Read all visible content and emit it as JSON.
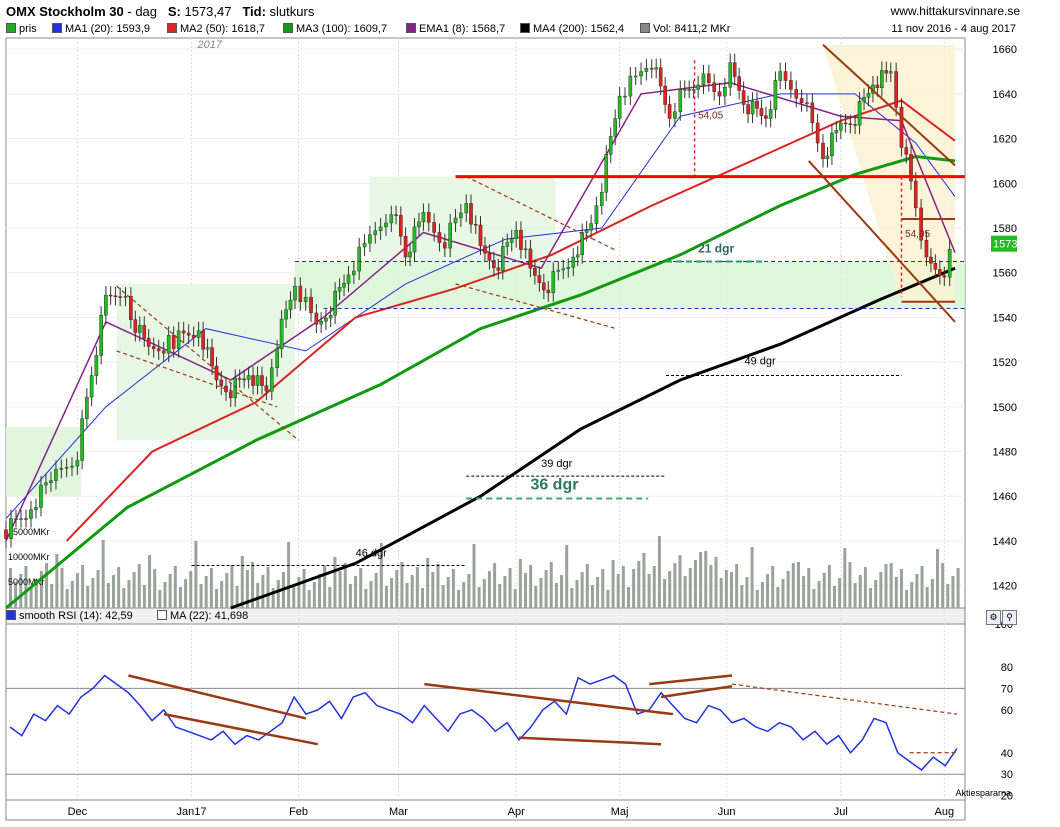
{
  "header": {
    "title": "OMX Stockholm 30",
    "interval": "dag",
    "close_label": "S:",
    "close_value": "1573,47",
    "time_label": "Tid:",
    "time_value": "slutkurs",
    "site": "www.hittakursvinnare.se",
    "date_range": "11 nov 2016 - 4 aug 2017"
  },
  "legend": [
    {
      "label": "pris",
      "color": "#22aa22"
    },
    {
      "label": "MA1 (20): 1593,9",
      "color": "#2233dd"
    },
    {
      "label": "MA2 (50): 1618,7",
      "color": "#dd2222"
    },
    {
      "label": "MA3 (100): 1609,7",
      "color": "#119911"
    },
    {
      "label": "EMA1 (8): 1568,7",
      "color": "#882288"
    },
    {
      "label": "MA4 (200): 1562,4",
      "color": "#000000"
    },
    {
      "label": "Vol: 8411,2 MKr",
      "color": "#888888"
    }
  ],
  "rsi_legend": [
    {
      "label": "smooth RSI (14): 42,59",
      "color": "#2233dd"
    },
    {
      "label": "MA (22): 41,698",
      "color": "#ffffff"
    }
  ],
  "colors": {
    "up": "#22bb22",
    "down": "#dd2222",
    "trend": "#9b3a12",
    "support": "#ff0000",
    "volume": "#9aa39a"
  },
  "chart_data": [
    {
      "type": "candlestick",
      "title": "OMX Stockholm 30",
      "ylim": [
        1410,
        1665
      ],
      "y_ticks": [
        1420,
        1440,
        1460,
        1480,
        1500,
        1520,
        1540,
        1560,
        1580,
        1600,
        1620,
        1640,
        1660
      ],
      "x_labels": [
        "Dec",
        "Jan17",
        "Feb",
        "Mar",
        "Apr",
        "Maj",
        "Jun",
        "Jul",
        "Aug"
      ],
      "year_marker": "2017",
      "last_price": "1573",
      "close_path": [
        [
          "2016-11-11",
          1445
        ],
        [
          "2016-11-18",
          1455
        ],
        [
          "2016-11-25",
          1470
        ],
        [
          "2016-12-01",
          1480
        ],
        [
          "2016-12-05",
          1515
        ],
        [
          "2016-12-09",
          1548
        ],
        [
          "2016-12-13",
          1553
        ],
        [
          "2016-12-16",
          1540
        ],
        [
          "2016-12-21",
          1525
        ],
        [
          "2016-12-28",
          1530
        ],
        [
          "2017-01-04",
          1535
        ],
        [
          "2017-01-09",
          1510
        ],
        [
          "2017-01-13",
          1508
        ],
        [
          "2017-01-18",
          1515
        ],
        [
          "2017-01-23",
          1505
        ],
        [
          "2017-01-26",
          1530
        ],
        [
          "2017-01-31",
          1555
        ],
        [
          "2017-02-06",
          1535
        ],
        [
          "2017-02-10",
          1545
        ],
        [
          "2017-02-15",
          1560
        ],
        [
          "2017-02-21",
          1575
        ],
        [
          "2017-02-27",
          1590
        ],
        [
          "2017-03-03",
          1568
        ],
        [
          "2017-03-08",
          1585
        ],
        [
          "2017-03-14",
          1575
        ],
        [
          "2017-03-20",
          1592
        ],
        [
          "2017-03-24",
          1570
        ],
        [
          "2017-03-29",
          1565
        ],
        [
          "2017-04-03",
          1580
        ],
        [
          "2017-04-07",
          1560
        ],
        [
          "2017-04-12",
          1555
        ],
        [
          "2017-04-19",
          1568
        ],
        [
          "2017-04-24",
          1580
        ],
        [
          "2017-04-27",
          1600
        ],
        [
          "2017-05-02",
          1640
        ],
        [
          "2017-05-08",
          1648
        ],
        [
          "2017-05-11",
          1655
        ],
        [
          "2017-05-16",
          1630
        ],
        [
          "2017-05-19",
          1640
        ],
        [
          "2017-05-24",
          1648
        ],
        [
          "2017-05-30",
          1640
        ],
        [
          "2017-06-02",
          1652
        ],
        [
          "2017-06-07",
          1635
        ],
        [
          "2017-06-12",
          1630
        ],
        [
          "2017-06-16",
          1648
        ],
        [
          "2017-06-22",
          1640
        ],
        [
          "2017-06-28",
          1612
        ],
        [
          "2017-07-03",
          1625
        ],
        [
          "2017-07-07",
          1630
        ],
        [
          "2017-07-12",
          1645
        ],
        [
          "2017-07-17",
          1648
        ],
        [
          "2017-07-20",
          1620
        ],
        [
          "2017-07-24",
          1590
        ],
        [
          "2017-07-27",
          1565
        ],
        [
          "2017-08-01",
          1562
        ],
        [
          "2017-08-04",
          1573
        ]
      ],
      "moving_averages": [
        {
          "name": "MA1 (20)",
          "value": 1593.9,
          "points": [
            [
              "2016-11-11",
              1450
            ],
            [
              "2016-12-09",
              1500
            ],
            [
              "2017-01-06",
              1535
            ],
            [
              "2017-02-03",
              1525
            ],
            [
              "2017-03-03",
              1555
            ],
            [
              "2017-03-31",
              1575
            ],
            [
              "2017-04-27",
              1580
            ],
            [
              "2017-05-19",
              1630
            ],
            [
              "2017-06-16",
              1640
            ],
            [
              "2017-07-07",
              1640
            ],
            [
              "2017-07-24",
              1618
            ],
            [
              "2017-08-04",
              1594
            ]
          ]
        },
        {
          "name": "MA2 (50)",
          "value": 1618.7,
          "points": [
            [
              "2016-11-28",
              1440
            ],
            [
              "2016-12-22",
              1480
            ],
            [
              "2017-01-20",
              1502
            ],
            [
              "2017-02-17",
              1540
            ],
            [
              "2017-03-17",
              1553
            ],
            [
              "2017-04-13",
              1568
            ],
            [
              "2017-05-11",
              1590
            ],
            [
              "2017-06-08",
              1610
            ],
            [
              "2017-07-03",
              1628
            ],
            [
              "2017-07-20",
              1637
            ],
            [
              "2017-08-04",
              1619
            ]
          ]
        },
        {
          "name": "MA3 (100)",
          "value": 1609.7,
          "points": [
            [
              "2016-11-11",
              1410
            ],
            [
              "2016-12-15",
              1455
            ],
            [
              "2017-01-20",
              1485
            ],
            [
              "2017-02-24",
              1510
            ],
            [
              "2017-03-24",
              1535
            ],
            [
              "2017-04-21",
              1550
            ],
            [
              "2017-05-19",
              1568
            ],
            [
              "2017-06-16",
              1590
            ],
            [
              "2017-07-07",
              1604
            ],
            [
              "2017-07-24",
              1612
            ],
            [
              "2017-08-04",
              1610
            ]
          ]
        },
        {
          "name": "EMA1 (8)",
          "value": 1568.7,
          "points": [
            [
              "2016-11-11",
              1440
            ],
            [
              "2016-12-09",
              1538
            ],
            [
              "2017-01-13",
              1512
            ],
            [
              "2017-02-08",
              1540
            ],
            [
              "2017-03-08",
              1578
            ],
            [
              "2017-04-10",
              1562
            ],
            [
              "2017-05-08",
              1640
            ],
            [
              "2017-06-02",
              1645
            ],
            [
              "2017-07-03",
              1630
            ],
            [
              "2017-07-20",
              1628
            ],
            [
              "2017-08-04",
              1569
            ]
          ]
        },
        {
          "name": "MA4 (200)",
          "value": 1562.4,
          "points": [
            [
              "2017-01-13",
              1410
            ],
            [
              "2017-02-17",
              1430
            ],
            [
              "2017-03-24",
              1460
            ],
            [
              "2017-04-21",
              1490
            ],
            [
              "2017-05-19",
              1512
            ],
            [
              "2017-06-16",
              1528
            ],
            [
              "2017-07-14",
              1548
            ],
            [
              "2017-08-04",
              1562
            ]
          ]
        }
      ],
      "support_line": 1603,
      "zones": [
        {
          "from": 1544,
          "to": 1565
        }
      ],
      "annotations": [
        "21 dgr",
        "49 dgr",
        "39 dgr",
        "36 dgr",
        "46 dgr",
        "54,05",
        "54,05"
      ],
      "volume_labels": [
        "15000MKr",
        "10000MKr",
        "5000MKr"
      ]
    },
    {
      "type": "line",
      "title": "smooth RSI (14)",
      "ylim": [
        18,
        100
      ],
      "y_ticks": [
        20,
        30,
        40,
        60,
        70,
        80,
        100
      ],
      "reference_lines": [
        30,
        70
      ],
      "values": [
        52,
        48,
        58,
        55,
        62,
        58,
        66,
        70,
        76,
        72,
        68,
        62,
        55,
        60,
        52,
        50,
        48,
        46,
        50,
        44,
        48,
        46,
        50,
        54,
        66,
        58,
        60,
        64,
        56,
        66,
        68,
        62,
        60,
        58,
        54,
        62,
        56,
        50,
        58,
        60,
        56,
        50,
        54,
        46,
        52,
        60,
        64,
        58,
        75,
        72,
        74,
        76,
        72,
        58,
        60,
        68,
        62,
        56,
        54,
        62,
        60,
        54,
        56,
        52,
        50,
        54,
        52,
        46,
        50,
        44,
        48,
        40,
        46,
        56,
        54,
        40,
        36,
        32,
        38,
        34,
        42
      ]
    }
  ],
  "footer": {
    "brand": "Aktiespararna"
  }
}
